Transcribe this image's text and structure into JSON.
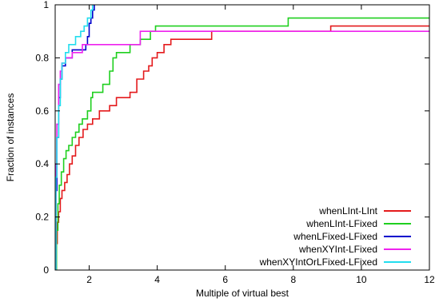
{
  "chart_data": {
    "type": "line",
    "step": true,
    "title": "",
    "xlabel": "Multiple of virtual best",
    "ylabel": "Fraction of instances",
    "xlim": [
      1,
      12
    ],
    "ylim": [
      0,
      1
    ],
    "xticks": [
      2,
      4,
      6,
      8,
      10,
      12
    ],
    "yticks": [
      0,
      0.2,
      0.4,
      0.6,
      0.8,
      1
    ],
    "xtick_labels": [
      "2",
      "4",
      "6",
      "8",
      "10",
      "12"
    ],
    "ytick_labels": [
      "0",
      "0.2",
      "0.4",
      "0.6",
      "0.8",
      "1"
    ],
    "grid": false,
    "legend_position": "bottom-right",
    "series": [
      {
        "name": "whenLInt-LInt",
        "color": "#e41a1c",
        "points": [
          [
            1.0,
            0.0
          ],
          [
            1.03,
            0.1
          ],
          [
            1.06,
            0.18
          ],
          [
            1.1,
            0.22
          ],
          [
            1.15,
            0.27
          ],
          [
            1.2,
            0.3
          ],
          [
            1.28,
            0.33
          ],
          [
            1.35,
            0.36
          ],
          [
            1.42,
            0.4
          ],
          [
            1.5,
            0.43
          ],
          [
            1.6,
            0.47
          ],
          [
            1.7,
            0.5
          ],
          [
            1.82,
            0.53
          ],
          [
            1.95,
            0.55
          ],
          [
            2.1,
            0.57
          ],
          [
            2.3,
            0.6
          ],
          [
            2.6,
            0.62
          ],
          [
            2.8,
            0.65
          ],
          [
            3.2,
            0.67
          ],
          [
            3.4,
            0.72
          ],
          [
            3.6,
            0.75
          ],
          [
            3.75,
            0.77
          ],
          [
            3.85,
            0.8
          ],
          [
            4.0,
            0.82
          ],
          [
            4.2,
            0.85
          ],
          [
            4.4,
            0.87
          ],
          [
            5.6,
            0.9
          ],
          [
            9.1,
            0.92
          ],
          [
            12.0,
            0.92
          ]
        ]
      },
      {
        "name": "whenLInt-LFixed",
        "color": "#1fcf1f",
        "points": [
          [
            1.0,
            0.0
          ],
          [
            1.04,
            0.15
          ],
          [
            1.08,
            0.25
          ],
          [
            1.12,
            0.32
          ],
          [
            1.18,
            0.37
          ],
          [
            1.25,
            0.42
          ],
          [
            1.32,
            0.45
          ],
          [
            1.4,
            0.47
          ],
          [
            1.5,
            0.5
          ],
          [
            1.6,
            0.52
          ],
          [
            1.7,
            0.55
          ],
          [
            1.8,
            0.57
          ],
          [
            1.95,
            0.6
          ],
          [
            2.05,
            0.65
          ],
          [
            2.1,
            0.67
          ],
          [
            2.4,
            0.7
          ],
          [
            2.6,
            0.75
          ],
          [
            2.7,
            0.8
          ],
          [
            2.8,
            0.82
          ],
          [
            3.2,
            0.85
          ],
          [
            3.5,
            0.87
          ],
          [
            3.8,
            0.9
          ],
          [
            3.95,
            0.92
          ],
          [
            7.85,
            0.95
          ],
          [
            12.0,
            0.95
          ]
        ]
      },
      {
        "name": "whenLFixed-LFixed",
        "color": "#0000cc",
        "points": [
          [
            1.0,
            0.0
          ],
          [
            1.02,
            0.3
          ],
          [
            1.05,
            0.5
          ],
          [
            1.1,
            0.65
          ],
          [
            1.15,
            0.72
          ],
          [
            1.2,
            0.77
          ],
          [
            1.3,
            0.8
          ],
          [
            1.4,
            0.8
          ],
          [
            1.5,
            0.83
          ],
          [
            1.9,
            0.85
          ],
          [
            1.95,
            0.88
          ],
          [
            2.0,
            0.93
          ],
          [
            2.05,
            0.95
          ],
          [
            2.1,
            0.98
          ],
          [
            2.15,
            1.0
          ]
        ]
      },
      {
        "name": "whenXYInt-LFixed",
        "color": "#ee22ee",
        "points": [
          [
            1.0,
            0.0
          ],
          [
            1.02,
            0.4
          ],
          [
            1.05,
            0.55
          ],
          [
            1.1,
            0.7
          ],
          [
            1.15,
            0.75
          ],
          [
            1.2,
            0.78
          ],
          [
            1.3,
            0.8
          ],
          [
            1.5,
            0.82
          ],
          [
            1.8,
            0.85
          ],
          [
            3.5,
            0.9
          ],
          [
            12.0,
            0.9
          ]
        ]
      },
      {
        "name": "whenXYIntOrLFixed-LFixed",
        "color": "#22ddee",
        "points": [
          [
            1.0,
            0.0
          ],
          [
            1.02,
            0.35
          ],
          [
            1.05,
            0.5
          ],
          [
            1.1,
            0.62
          ],
          [
            1.15,
            0.72
          ],
          [
            1.2,
            0.78
          ],
          [
            1.3,
            0.82
          ],
          [
            1.4,
            0.85
          ],
          [
            1.6,
            0.88
          ],
          [
            1.75,
            0.9
          ],
          [
            1.85,
            0.92
          ],
          [
            1.95,
            0.95
          ],
          [
            2.05,
            0.98
          ],
          [
            2.1,
            1.0
          ]
        ]
      }
    ]
  }
}
